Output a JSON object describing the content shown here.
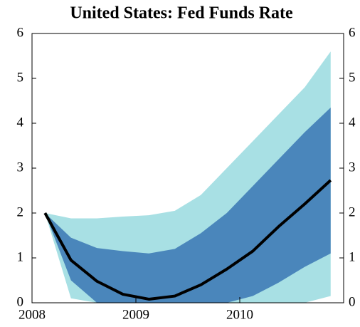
{
  "chart_data": {
    "type": "fan",
    "title": "United States: Fed Funds Rate",
    "x": [
      2008.125,
      2008.375,
      2008.625,
      2008.875,
      2009.125,
      2009.375,
      2009.625,
      2009.875,
      2010.125,
      2010.375,
      2010.625,
      2010.875
    ],
    "xlim": [
      2008,
      2011
    ],
    "xticks": [
      2008,
      2009,
      2010
    ],
    "ylim": [
      0,
      6
    ],
    "yticks": [
      0,
      1,
      2,
      3,
      4,
      5,
      6
    ],
    "y2lim": [
      0,
      6
    ],
    "y2ticks": [
      0,
      1,
      2,
      3,
      4,
      5,
      6
    ],
    "bands": [
      {
        "color": "#a8e0e4",
        "upper": [
          2.0,
          1.88,
          1.88,
          1.92,
          1.95,
          2.05,
          2.4,
          3.0,
          3.6,
          4.2,
          4.8,
          5.6
        ],
        "lower": [
          2.0,
          0.1,
          0,
          0,
          0,
          0,
          0,
          0,
          0,
          0,
          0,
          0.15
        ]
      },
      {
        "color": "#4a86bb",
        "upper": [
          2.0,
          1.45,
          1.22,
          1.15,
          1.1,
          1.2,
          1.55,
          2.0,
          2.6,
          3.2,
          3.8,
          4.35
        ],
        "lower": [
          2.0,
          0.5,
          0,
          0,
          0,
          0,
          0,
          0,
          0.15,
          0.45,
          0.8,
          1.1
        ]
      }
    ],
    "line": {
      "color": "#000000",
      "values": [
        2.0,
        0.95,
        0.48,
        0.19,
        0.08,
        0.15,
        0.4,
        0.75,
        1.15,
        1.7,
        2.2,
        2.73
      ]
    }
  }
}
